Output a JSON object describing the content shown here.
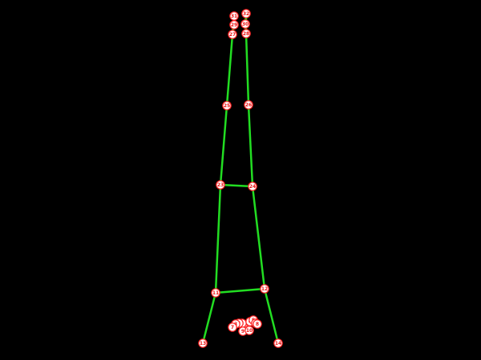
{
  "colors": {
    "background": "#000000",
    "bone": "#22dd22",
    "keypoint_fill": "#ffffff",
    "keypoint_stroke": "#ff2020",
    "keypoint_label": "#ee1111"
  },
  "keypoints": [
    {
      "id": "0",
      "label": "0"
    },
    {
      "id": "1",
      "label": "1"
    },
    {
      "id": "2",
      "label": "2"
    },
    {
      "id": "3",
      "label": "3"
    },
    {
      "id": "4",
      "label": "4"
    },
    {
      "id": "5",
      "label": "5"
    },
    {
      "id": "6",
      "label": "6"
    },
    {
      "id": "7",
      "label": "7"
    },
    {
      "id": "8",
      "label": "8"
    },
    {
      "id": "9",
      "label": "9"
    },
    {
      "id": "10",
      "label": "10"
    },
    {
      "id": "11",
      "label": "11"
    },
    {
      "id": "12",
      "label": "12"
    },
    {
      "id": "13",
      "label": "13"
    },
    {
      "id": "14",
      "label": "14"
    },
    {
      "id": "23",
      "label": "23"
    },
    {
      "id": "24",
      "label": "24"
    },
    {
      "id": "25",
      "label": "25"
    },
    {
      "id": "26",
      "label": "26"
    },
    {
      "id": "27",
      "label": "27"
    },
    {
      "id": "28",
      "label": "28"
    },
    {
      "id": "29",
      "label": "29"
    },
    {
      "id": "30",
      "label": "30"
    },
    {
      "id": "31",
      "label": "31"
    },
    {
      "id": "32",
      "label": "32"
    }
  ],
  "connections": [
    [
      "11",
      "12"
    ],
    [
      "11",
      "13"
    ],
    [
      "12",
      "14"
    ],
    [
      "11",
      "23"
    ],
    [
      "12",
      "24"
    ],
    [
      "23",
      "24"
    ],
    [
      "23",
      "25"
    ],
    [
      "24",
      "26"
    ],
    [
      "25",
      "27"
    ],
    [
      "26",
      "28"
    ],
    [
      "27",
      "29"
    ],
    [
      "28",
      "30"
    ],
    [
      "29",
      "31"
    ],
    [
      "30",
      "32"
    ],
    [
      "27",
      "31"
    ],
    [
      "28",
      "32"
    ]
  ]
}
